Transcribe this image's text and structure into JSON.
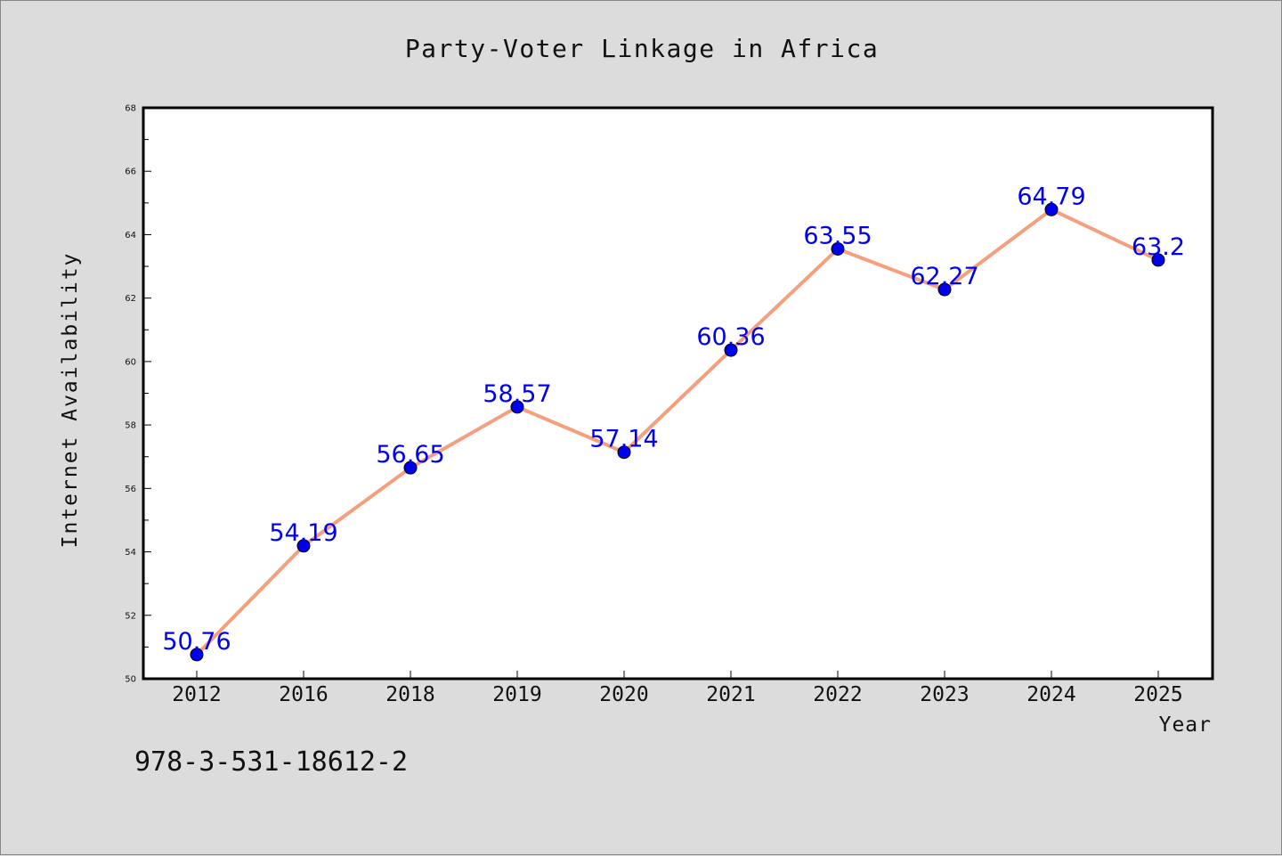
{
  "chart_data": {
    "type": "line",
    "title": "Party-Voter Linkage in Africa",
    "xlabel": "Year",
    "ylabel": "Internet Availability",
    "categories": [
      "2012",
      "2016",
      "2018",
      "2019",
      "2020",
      "2021",
      "2022",
      "2023",
      "2024",
      "2025"
    ],
    "series": [
      {
        "values": [
          50.76,
          54.19,
          56.65,
          58.57,
          57.14,
          60.36,
          63.55,
          62.27,
          64.79,
          63.2
        ],
        "data_labels": [
          "50.76",
          "54.19",
          "56.65",
          "58.57",
          "57.14",
          "60.36",
          "63.55",
          "62.27",
          "64.79",
          "63.2"
        ]
      }
    ],
    "ylim": [
      50,
      68
    ],
    "yticks": [
      "50",
      "52",
      "54",
      "56",
      "58",
      "60",
      "62",
      "64",
      "66",
      "68"
    ],
    "grid": false,
    "legend": "none",
    "colors": {
      "line": "#f4a07e",
      "marker": "#0000ee",
      "label": "#0000ee"
    }
  },
  "footer_text": "978-3-531-18612-2"
}
